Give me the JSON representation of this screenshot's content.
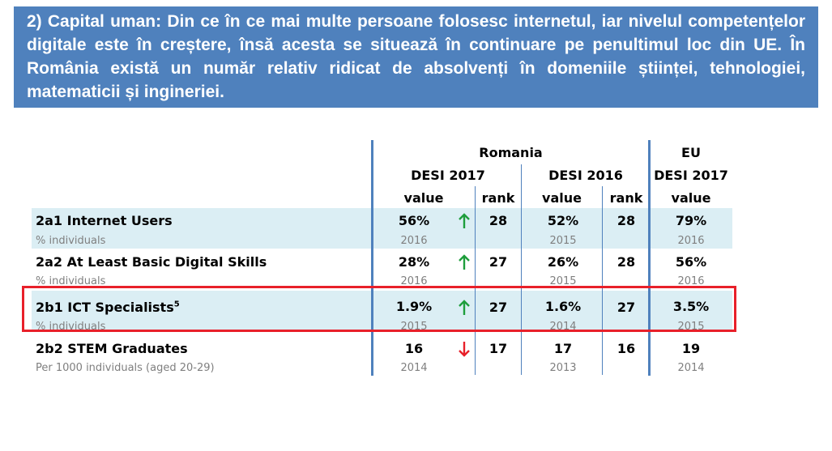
{
  "heading": "2) Capital uman: Din ce în ce mai multe persoane folosesc internetul, iar nivelul competențelor digitale este în creștere, însă acesta se situează în continuare pe penultimul loc din UE. În România există un număr relativ ridicat de absolvenți în domeniile științei, tehnologiei, matematicii și ingineriei.",
  "table": {
    "header": {
      "romania": "Romania",
      "eu": "EU",
      "desi2017": "DESI 2017",
      "desi2016": "DESI 2016",
      "eu_desi2017": "DESI 2017",
      "value": "value",
      "rank": "rank"
    },
    "rows": [
      {
        "label": "2a1 Internet Users",
        "sup": "",
        "unit": "% individuals",
        "ro2017_value": "56%",
        "ro2017_year": "2016",
        "ro2017_trend": "up",
        "ro2017_rank": "28",
        "ro2016_value": "52%",
        "ro2016_year": "2015",
        "ro2016_rank": "28",
        "eu_value": "79%",
        "eu_year": "2016"
      },
      {
        "label": "2a2 At Least Basic Digital Skills",
        "sup": "",
        "unit": "% individuals",
        "ro2017_value": "28%",
        "ro2017_year": "2016",
        "ro2017_trend": "up",
        "ro2017_rank": "27",
        "ro2016_value": "26%",
        "ro2016_year": "2015",
        "ro2016_rank": "28",
        "eu_value": "56%",
        "eu_year": "2016"
      },
      {
        "label": "2b1 ICT Specialists",
        "sup": "5",
        "unit": "% individuals",
        "ro2017_value": "1.9%",
        "ro2017_year": "2015",
        "ro2017_trend": "up",
        "ro2017_rank": "27",
        "ro2016_value": "1.6%",
        "ro2016_year": "2014",
        "ro2016_rank": "27",
        "eu_value": "3.5%",
        "eu_year": "2015"
      },
      {
        "label": "2b2 STEM Graduates",
        "sup": "",
        "unit": "Per 1000 individuals (aged 20-29)",
        "ro2017_value": "16",
        "ro2017_year": "2014",
        "ro2017_trend": "down",
        "ro2017_rank": "17",
        "ro2016_value": "17",
        "ro2016_year": "2013",
        "ro2016_rank": "16",
        "eu_value": "19",
        "eu_year": "2014"
      }
    ]
  },
  "colors": {
    "banner": "#4f81bd",
    "band": "#dbeef4",
    "up": "#1e9e3c",
    "down": "#e8202a",
    "highlight": "#e8202a"
  }
}
